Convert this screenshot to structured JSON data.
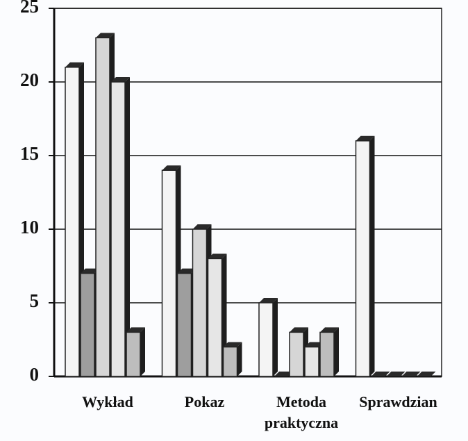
{
  "chart_data": {
    "type": "bar",
    "categories": [
      "Wykład",
      "Pokaz",
      "Metoda\npraktyczna",
      "Sprawdzian"
    ],
    "series": [
      {
        "color": "#f4f4f4",
        "values": [
          21,
          14,
          5,
          16
        ]
      },
      {
        "color": "#9e9e9e",
        "values": [
          7,
          7,
          0,
          0
        ]
      },
      {
        "color": "#d6d6d6",
        "values": [
          23,
          10,
          3,
          0
        ]
      },
      {
        "color": "#e6e6e6",
        "values": [
          20,
          8,
          2,
          0
        ]
      },
      {
        "color": "#bdbdbd",
        "values": [
          3,
          2,
          3,
          0
        ]
      }
    ],
    "ylim": [
      0,
      25
    ],
    "yticks": [
      0,
      5,
      10,
      15,
      20,
      25
    ],
    "grid": true
  }
}
